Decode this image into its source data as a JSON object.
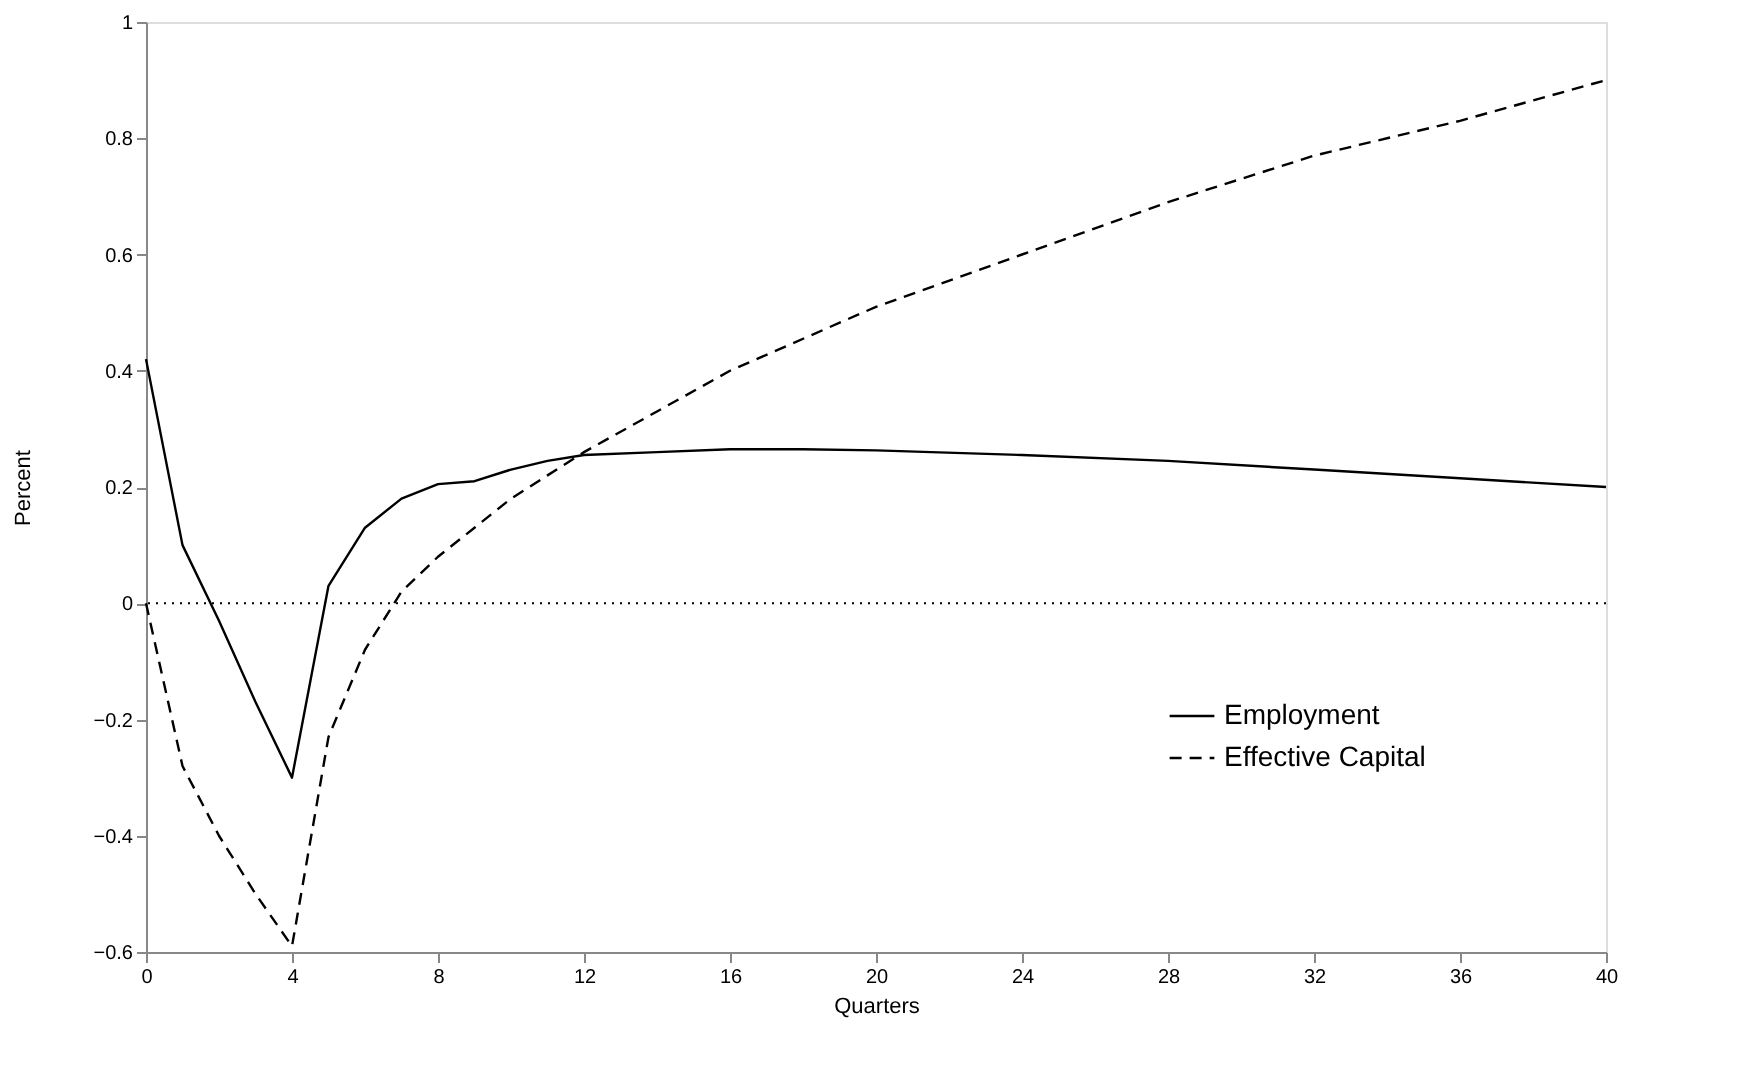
{
  "chart_data": {
    "type": "line",
    "xlabel": "Quarters",
    "ylabel": "Percent",
    "xlim": [
      0,
      40
    ],
    "xticks": [
      0,
      4,
      8,
      12,
      16,
      20,
      24,
      28,
      32,
      36,
      40
    ],
    "ylim": [
      -0.6,
      1
    ],
    "yticks": [
      -0.6,
      -0.4,
      -0.2,
      0,
      0.2,
      0.4,
      0.6,
      0.8,
      1
    ],
    "grid": false,
    "legend": "bottom right",
    "marker": "none",
    "ref_lines": [
      {
        "axis": "y",
        "value": 0,
        "color": "#000000",
        "line_style": "dotted"
      }
    ],
    "series": [
      {
        "name": "Employment",
        "color": "#000000",
        "line_style": "solid",
        "x": [
          0,
          1,
          2,
          3,
          4,
          5,
          6,
          7,
          8,
          9,
          10,
          11,
          12,
          14,
          16,
          18,
          20,
          24,
          28,
          32,
          36,
          40
        ],
        "values": [
          0.42,
          0.1,
          -0.03,
          -0.17,
          -0.3,
          0.03,
          0.13,
          0.18,
          0.205,
          0.21,
          0.23,
          0.245,
          0.255,
          0.26,
          0.265,
          0.265,
          0.263,
          0.255,
          0.245,
          0.23,
          0.215,
          0.2
        ]
      },
      {
        "name": "Effective Capital",
        "color": "#000000",
        "line_style": "dashed",
        "x": [
          0,
          1,
          2,
          3,
          4,
          5,
          6,
          7,
          8,
          9,
          10,
          11,
          12,
          14,
          16,
          20,
          24,
          28,
          32,
          36,
          40
        ],
        "values": [
          0,
          -0.28,
          -0.4,
          -0.5,
          -0.59,
          -0.23,
          -0.08,
          0.02,
          0.08,
          0.13,
          0.18,
          0.22,
          0.26,
          0.33,
          0.4,
          0.51,
          0.6,
          0.69,
          0.77,
          0.83,
          0.9
        ]
      }
    ]
  }
}
